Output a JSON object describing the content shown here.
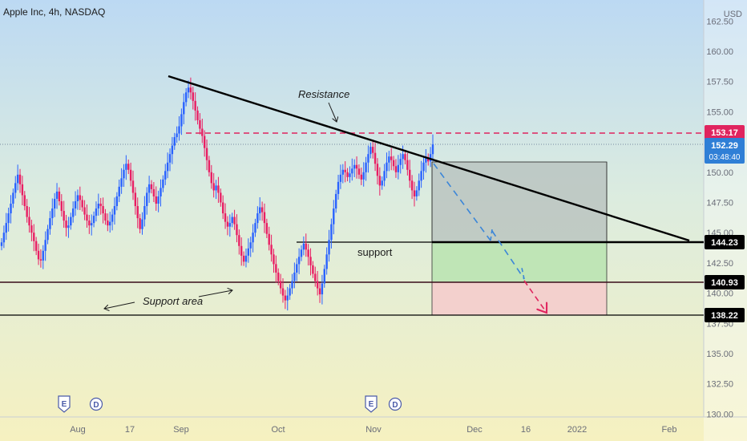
{
  "header": {
    "title": "Apple Inc, 4h, NASDAQ",
    "currency": "USD"
  },
  "chart_data": {
    "type": "candlestick",
    "symbol": "Apple Inc",
    "interval": "4h",
    "exchange": "NASDAQ",
    "x_ticks": [
      "Aug",
      "17",
      "Sep",
      "Oct",
      "Nov",
      "Dec",
      "16",
      "2022",
      "Feb"
    ],
    "y_ticks": [
      "162.50",
      "160.00",
      "157.50",
      "155.00",
      "152.50",
      "150.00",
      "147.50",
      "145.00",
      "142.50",
      "140.00",
      "137.50",
      "135.00",
      "132.50",
      "130.00"
    ],
    "ylim": [
      130,
      163.5
    ],
    "last_price": {
      "value": "152.29",
      "countdown": "03:48:40"
    },
    "levels": [
      {
        "label": "153.17",
        "value": 153.17,
        "style": "dashed",
        "color": "#e0245e"
      },
      {
        "label": "144.23",
        "value": 144.23,
        "style": "solid",
        "color": "#000000"
      },
      {
        "label": "140.93",
        "value": 140.93,
        "style": "solid",
        "color": "#3a0d1a"
      },
      {
        "label": "138.22",
        "value": 138.22,
        "style": "solid",
        "color": "#000000"
      }
    ],
    "annotations": {
      "resistance": "Resistance",
      "support": "support",
      "support_area": "Support area"
    },
    "events": [
      "E",
      "D",
      "E",
      "D"
    ],
    "colors": {
      "up": "#2962ff",
      "down": "#e91e63",
      "profit_zone": "#b9e3b0",
      "loss_zone": "#f4cccc",
      "target_box": "#b5bfbc"
    },
    "closes": [
      144.2,
      145.0,
      145.8,
      146.6,
      147.4,
      148.3,
      149.1,
      149.8,
      149.0,
      148.1,
      147.2,
      146.3,
      145.6,
      145.0,
      144.3,
      143.5,
      142.8,
      142.7,
      143.5,
      144.4,
      145.3,
      146.2,
      147.0,
      147.8,
      148.4,
      147.6,
      146.8,
      146.0,
      145.4,
      145.6,
      146.3,
      147.0,
      147.6,
      148.1,
      147.7,
      147.1,
      146.5,
      146.0,
      145.6,
      145.8,
      146.4,
      147.0,
      147.4,
      147.2,
      146.6,
      146.0,
      145.6,
      145.9,
      146.5,
      147.2,
      148.0,
      148.8,
      149.5,
      150.2,
      150.7,
      150.2,
      149.3,
      148.3,
      147.2,
      146.2,
      145.3,
      146.1,
      147.2,
      148.3,
      149.0,
      148.6,
      148.0,
      147.4,
      148.0,
      148.7,
      149.4,
      150.1,
      150.8,
      151.5,
      152.2,
      152.9,
      153.2,
      153.8,
      154.8,
      155.8,
      156.6,
      157.0,
      156.6,
      155.9,
      155.1,
      154.3,
      153.6,
      153.0,
      152.0,
      151.0,
      150.0,
      149.1,
      148.5,
      148.9,
      148.3,
      147.5,
      146.6,
      145.9,
      145.5,
      145.8,
      146.3,
      145.7,
      144.8,
      143.9,
      143.1,
      142.6,
      143.1,
      143.7,
      144.2,
      145.0,
      145.8,
      146.6,
      147.1,
      146.7,
      145.8,
      144.9,
      144.0,
      143.2,
      142.4,
      141.7,
      141.0,
      140.4,
      139.8,
      139.4,
      139.8,
      140.4,
      141.0,
      141.7,
      142.4,
      143.0,
      143.6,
      144.1,
      143.6,
      143.0,
      142.3,
      141.6,
      141.0,
      140.4,
      139.9,
      140.8,
      142.0,
      143.2,
      144.4,
      145.7,
      147.0,
      148.2,
      149.2,
      149.8,
      150.2,
      150.0,
      149.6,
      149.9,
      150.3,
      150.6,
      150.3,
      149.8,
      149.4,
      150.0,
      150.8,
      151.5,
      152.1,
      151.6,
      150.7,
      149.7,
      148.9,
      149.3,
      150.1,
      150.8,
      151.3,
      151.0,
      150.5,
      150.0,
      150.6,
      151.1,
      151.5,
      151.0,
      150.2,
      149.3,
      148.5,
      148.0,
      148.5,
      149.3,
      150.1,
      150.8,
      151.2,
      150.9,
      151.5,
      152.3
    ]
  }
}
